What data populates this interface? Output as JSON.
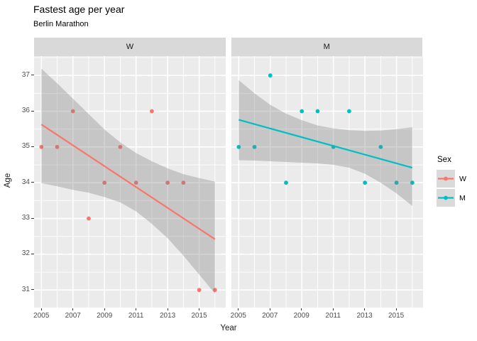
{
  "chart_data": {
    "type": "scatter",
    "title": "Fastest age per year",
    "subtitle": "Berlin Marathon",
    "xlabel": "Year",
    "ylabel": "Age",
    "x_ticks_major": [
      2005,
      2007,
      2009,
      2011,
      2013,
      2015
    ],
    "x_ticks_minor": [
      2006,
      2008,
      2010,
      2012,
      2014,
      2016
    ],
    "y_ticks_major": [
      37,
      36,
      35,
      34,
      33,
      32,
      31
    ],
    "y_ticks_minor": [
      37.5,
      36.5,
      35.5,
      34.5,
      33.5,
      32.5,
      31.5,
      30.5
    ],
    "x_range": [
      2004.5,
      2016.7
    ],
    "y_range": [
      30.5,
      37.5
    ],
    "grid": "on",
    "legend": {
      "title": "Sex",
      "position": "right",
      "items": [
        {
          "label": "W",
          "color": "#F8766D"
        },
        {
          "label": "M",
          "color": "#00BFC4"
        }
      ]
    },
    "facets": [
      {
        "label": "W",
        "color": "#F8766D",
        "points": {
          "x": [
            2005,
            2006,
            2007,
            2008,
            2009,
            2010,
            2011,
            2012,
            2013,
            2014,
            2015,
            2016
          ],
          "y": [
            35,
            35,
            36,
            33,
            34,
            35,
            34,
            36,
            34,
            34,
            31,
            31
          ]
        },
        "trend": {
          "x": [
            2005,
            2016
          ],
          "y": [
            35.63,
            32.42
          ]
        },
        "ci_band": {
          "x": [
            2005,
            2006,
            2007,
            2008,
            2009,
            2010,
            2011,
            2012,
            2013,
            2014,
            2015,
            2016
          ],
          "upper": [
            37.19,
            36.78,
            36.35,
            35.92,
            35.49,
            35.13,
            34.83,
            34.6,
            34.4,
            34.24,
            34.13,
            34.03
          ],
          "lower": [
            33.99,
            33.9,
            33.8,
            33.72,
            33.6,
            33.45,
            33.2,
            32.85,
            32.45,
            31.96,
            31.43,
            30.9
          ]
        }
      },
      {
        "label": "M",
        "color": "#00BFC4",
        "points": {
          "x": [
            2005,
            2006,
            2007,
            2008,
            2009,
            2010,
            2011,
            2012,
            2013,
            2014,
            2015,
            2016
          ],
          "y": [
            35,
            35,
            37,
            34,
            36,
            36,
            35,
            36,
            34,
            35,
            34,
            34
          ]
        },
        "trend": {
          "x": [
            2005,
            2016
          ],
          "y": [
            35.76,
            34.42
          ]
        },
        "ci_band": {
          "x": [
            2005,
            2006,
            2007,
            2008,
            2009,
            2010,
            2011,
            2012,
            2013,
            2014,
            2015,
            2016
          ],
          "upper": [
            36.87,
            36.5,
            36.18,
            35.93,
            35.75,
            35.6,
            35.52,
            35.47,
            35.45,
            35.46,
            35.5,
            35.55
          ],
          "lower": [
            34.63,
            34.62,
            34.6,
            34.58,
            34.56,
            34.54,
            34.5,
            34.42,
            34.25,
            34.0,
            33.7,
            33.35
          ]
        }
      }
    ],
    "style": {
      "panel_bg": "#EBEBEB",
      "strip_bg": "#D9D9D9",
      "legend_key_bg": "#DADADA",
      "grid_color": "#FFFFFF",
      "band_color": "#808080",
      "band_opacity": 0.35,
      "tick_color": "#333333",
      "tick_label_color": "#4D4D4D"
    }
  }
}
